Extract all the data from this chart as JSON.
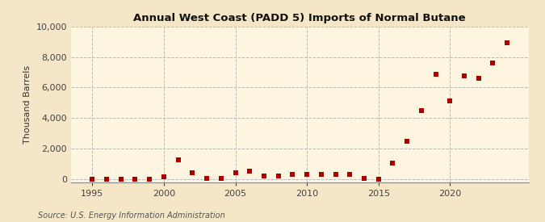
{
  "title": "Annual West Coast (PADD 5) Imports of Normal Butane",
  "ylabel": "Thousand Barrels",
  "source": "Source: U.S. Energy Information Administration",
  "background_color": "#f5e6c8",
  "plot_background_color": "#fdf5e0",
  "marker_color": "#aa0000",
  "marker_size": 4,
  "xlim": [
    1993.5,
    2025.5
  ],
  "ylim": [
    -200,
    10000
  ],
  "yticks": [
    0,
    2000,
    4000,
    6000,
    8000,
    10000
  ],
  "xticks": [
    1995,
    2000,
    2005,
    2010,
    2015,
    2020
  ],
  "years": [
    1995,
    1996,
    1997,
    1998,
    1999,
    2000,
    2001,
    2002,
    2003,
    2004,
    2005,
    2006,
    2007,
    2008,
    2009,
    2010,
    2011,
    2012,
    2013,
    2014,
    2015,
    2016,
    2017,
    2018,
    2019,
    2020,
    2021,
    2022,
    2023,
    2024
  ],
  "values": [
    0,
    0,
    0,
    0,
    0,
    130,
    1250,
    420,
    30,
    30,
    430,
    490,
    190,
    210,
    280,
    290,
    310,
    290,
    300,
    50,
    -30,
    1050,
    2500,
    4500,
    6900,
    5100,
    6750,
    6600,
    7600,
    8950
  ]
}
